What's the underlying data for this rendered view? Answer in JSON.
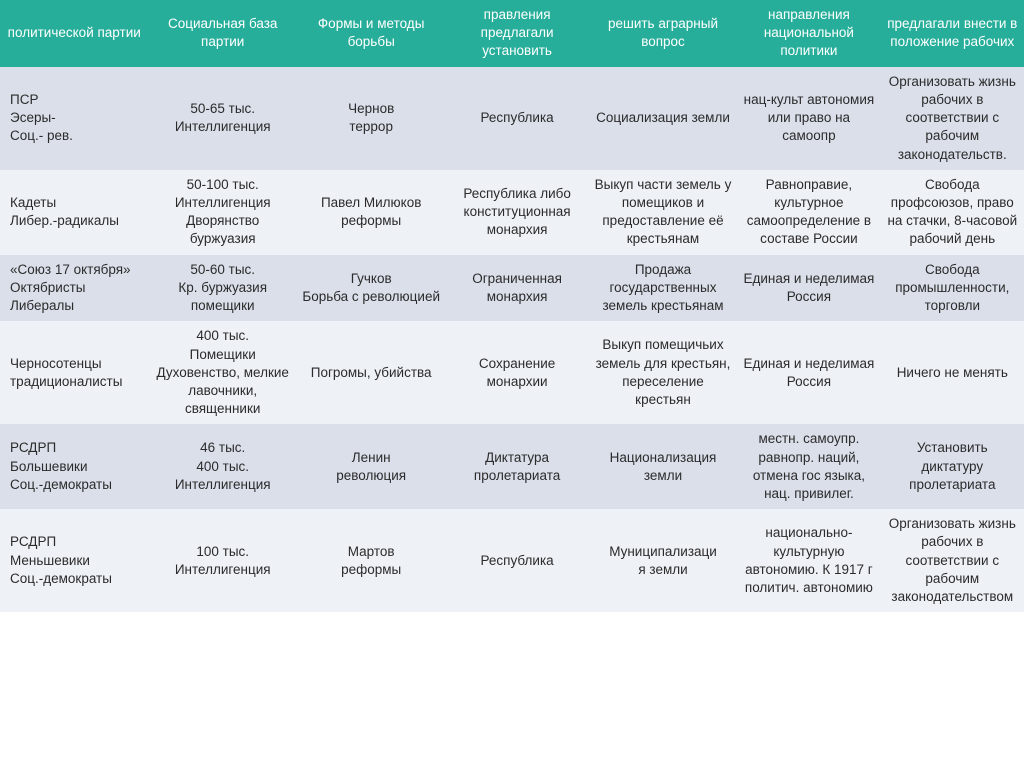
{
  "table": {
    "header_bg": "#27ae9a",
    "header_color": "#ffffff",
    "odd_row_bg": "#dadfea",
    "even_row_bg": "#eef1f6",
    "font_size_pt": 10,
    "columns": [
      "политической партии",
      "Социальная база партии",
      "Формы и методы борьбы",
      "правления предлагали установить",
      "решить аграрный вопрос",
      "направления национальной политики",
      "предлагали внести в положение рабочих"
    ],
    "rows": [
      {
        "name": "ПСР\nЭсеры-\nСоц.- рев.",
        "base": "50-65 тыс.\nИнтеллигенция",
        "methods": "Чернов\nтеррор",
        "government": "Республика",
        "agrarian": "Социализация земли",
        "national": "нац-культ автономия или право на самоопр",
        "workers": "Организовать жизнь рабочих в соответствии с рабочим законодательств."
      },
      {
        "name": "Кадеты\nЛибер.-радикалы",
        "base": "50-100 тыс.\nИнтеллигенция\nДворянство\nбуржуазия",
        "methods": "Павел Милюков\nреформы",
        "government": "Республика либо конституционная монархия",
        "agrarian": "Выкуп части земель у помещиков и предоставление её крестьянам",
        "national": "Равноправие, культурное самоопределение в составе России",
        "workers": "Свобода профсоюзов, право на стачки, 8-часовой рабочий день"
      },
      {
        "name": "«Союз 17 октября»\nОктябристы\nЛибералы",
        "base": "50-60 тыс.\nКр. буржуазия\nпомещики",
        "methods": "Гучков\nБорьба с революцией",
        "government": "Ограниченная монархия",
        "agrarian": "Продажа государственных земель крестьянам",
        "national": "Единая и неделимая Россия",
        "workers": "Свобода промышленности, торговли"
      },
      {
        "name": "Черносотенцы\nтрадиционалисты",
        "base": "400 тыс.\nПомещики\nДуховенство, мелкие лавочники, священники",
        "methods": "Погромы, убийства",
        "government": "Сохранение монархии",
        "agrarian": "Выкуп помещичьих земель для крестьян, переселение крестьян",
        "national": "Единая и неделимая Россия",
        "workers": "Ничего не менять"
      },
      {
        "name": "РСДРП\nБольшевики\nСоц.-демократы",
        "base": "46 тыс.\n400 тыс.\nИнтеллигенция",
        "methods": "Ленин\nреволюция",
        "government": "Диктатура пролетариата",
        "agrarian": "Национализация земли",
        "national": "местн. самоупр. равнопр. наций, отмена гос языка, нац. привилег.",
        "workers": "Установить диктатуру пролетариата"
      },
      {
        "name": "РСДРП\nМеньшевики\nСоц.-демократы",
        "base": "100 тыс.\nИнтеллигенция",
        "methods": "Мартов\nреформы",
        "government": "Республика",
        "agrarian": "Муниципализаци\nя земли",
        "national": "национально-культурную автономию. К 1917 г политич. автономию",
        "workers": "Организовать жизнь рабочих в соответствии с рабочим законодательством"
      }
    ]
  }
}
